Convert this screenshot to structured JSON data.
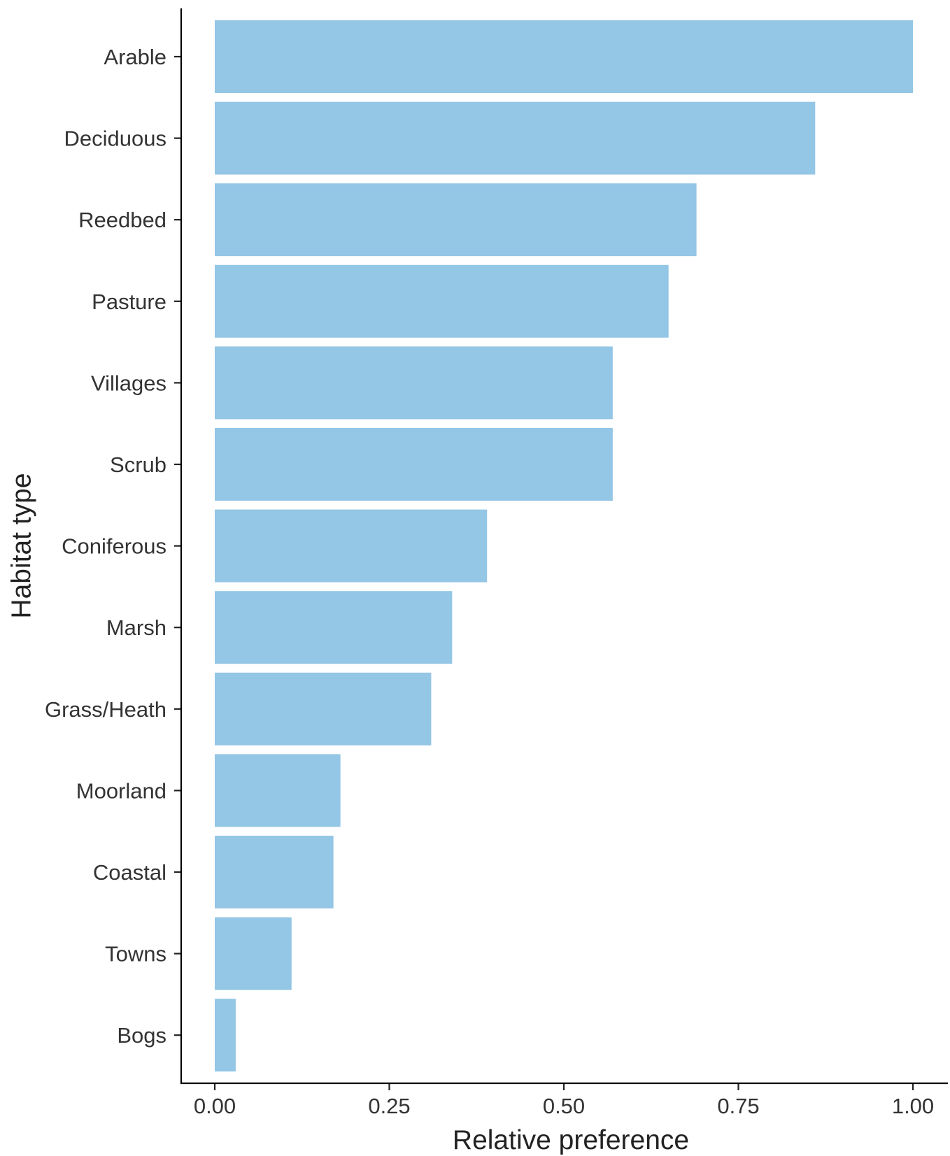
{
  "chart_data": {
    "type": "bar",
    "orientation": "horizontal",
    "categories": [
      "Arable",
      "Deciduous",
      "Reedbed",
      "Pasture",
      "Villages",
      "Scrub",
      "Coniferous",
      "Marsh",
      "Grass/Heath",
      "Moorland",
      "Coastal",
      "Towns",
      "Bogs"
    ],
    "values": [
      1.0,
      0.86,
      0.69,
      0.65,
      0.57,
      0.57,
      0.39,
      0.34,
      0.31,
      0.18,
      0.17,
      0.11,
      0.03
    ],
    "title": "",
    "xlabel": "Relative preference",
    "ylabel": "Habitat type",
    "xlim": [
      0,
      1.05
    ],
    "xticks": [
      "0.00",
      "0.25",
      "0.50",
      "0.75",
      "1.00"
    ],
    "bar_color": "#94c6e6",
    "grid": false,
    "legend": "none"
  }
}
